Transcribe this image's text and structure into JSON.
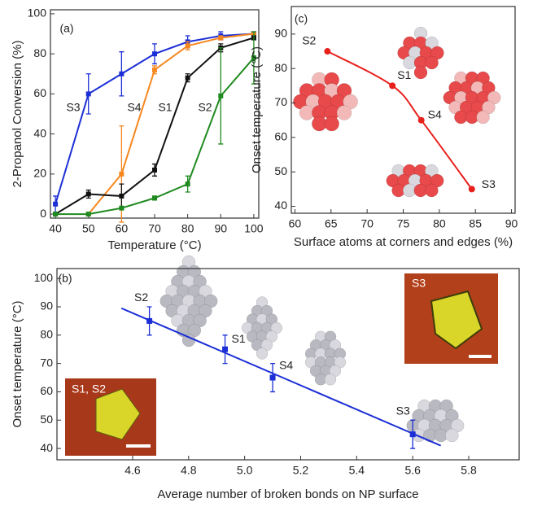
{
  "chart_data": [
    {
      "type": "line",
      "panel_label": "(a)",
      "x_label": "Temperature (°C)",
      "y_label": "2-Propanol Conversion (%)",
      "x": [
        40,
        50,
        60,
        70,
        80,
        90,
        100
      ],
      "series": [
        {
          "name": "S3",
          "color": "#1c2fd6",
          "values": [
            5,
            60,
            70,
            80,
            86,
            89,
            90
          ],
          "errors": [
            4,
            10,
            11,
            5,
            3,
            2,
            1
          ]
        },
        {
          "name": "S4",
          "color": "#f7871f",
          "values": [
            null,
            0,
            20,
            72,
            84,
            88,
            90
          ],
          "errors": [
            null,
            null,
            24,
            2,
            2,
            1,
            1
          ]
        },
        {
          "name": "S1",
          "color": "#111111",
          "values": [
            0,
            10,
            9,
            22,
            68,
            83,
            88
          ],
          "errors": [
            null,
            2,
            6,
            3,
            2,
            2,
            1
          ]
        },
        {
          "name": "S2",
          "color": "#1f8a1f",
          "values": [
            0,
            0,
            3,
            8,
            15,
            59,
            78
          ],
          "errors": [
            null,
            null,
            null,
            1,
            4,
            24,
            13
          ]
        }
      ],
      "xlim": [
        38.5,
        101.5
      ],
      "xticks": [
        40,
        50,
        60,
        70,
        80,
        90,
        100
      ],
      "ylim": [
        -2,
        102
      ],
      "yticks": [
        0,
        20,
        40,
        60,
        80,
        100
      ]
    },
    {
      "type": "scatter",
      "panel_label": "(c)",
      "x_label": "Surface atoms at corners and edges (%)",
      "y_label": "Onset temperature (°C)",
      "x": [
        64.5,
        73.5,
        77.5,
        84.5
      ],
      "values": [
        85,
        75,
        65,
        45
      ],
      "labels": [
        "S2",
        "S1",
        "S4",
        "S3"
      ],
      "color": "#e8201c",
      "xlim": [
        59.5,
        90.5
      ],
      "xticks": [
        60,
        65,
        70,
        75,
        80,
        85,
        90
      ],
      "ylim": [
        38,
        98
      ],
      "yticks": [
        40,
        50,
        60,
        70,
        80,
        90
      ]
    },
    {
      "type": "scatter",
      "panel_label": "(b)",
      "x_label": "Average number of broken bonds on NP surface",
      "y_label": "Onset temperature (°C)",
      "x": [
        4.66,
        4.93,
        5.1,
        5.6
      ],
      "values": [
        85,
        75,
        65,
        45
      ],
      "errors": [
        5,
        5,
        5,
        5
      ],
      "labels": [
        "S2",
        "S1",
        "S4",
        "S3"
      ],
      "color": "#1c2fd6",
      "fit_line": {
        "x": [
          4.56,
          5.7
        ],
        "values": [
          89.5,
          41
        ]
      },
      "insets": [
        "S1, S2",
        "S3"
      ],
      "xlim": [
        4.33,
        5.98
      ],
      "xticks": [
        4.6,
        4.8,
        {
          "value": 5,
          "label": "5.0"
        },
        5.2,
        5.4,
        5.6,
        5.8
      ],
      "ylim": [
        36,
        103.5
      ],
      "yticks": [
        40,
        50,
        60,
        70,
        80,
        90,
        100
      ]
    }
  ]
}
